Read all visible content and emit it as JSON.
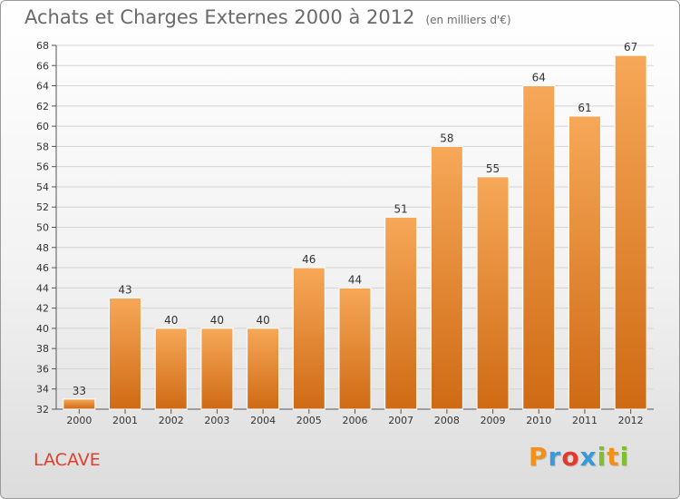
{
  "header": {
    "title": "Achats et Charges Externes 2000 à 2012",
    "subtitle": "(en milliers d'€)"
  },
  "footer": {
    "commune": "LACAVE",
    "brand_letters": [
      "P",
      "r",
      "o",
      "x",
      "i",
      "t",
      "i"
    ],
    "brand_colors": [
      "#f39019",
      "#3a9ad9",
      "#e23b2e",
      "#3a9ad9",
      "#7fbf2a",
      "#f39019",
      "#7fbf2a"
    ]
  },
  "colors": {
    "bar_top": "#f6a858",
    "bar_bottom": "#cf6a14",
    "grid": "#d3d3d3",
    "axis": "#555555",
    "text": "#333333"
  },
  "chart_data": {
    "type": "bar",
    "categories": [
      "2000",
      "2001",
      "2002",
      "2003",
      "2004",
      "2005",
      "2006",
      "2007",
      "2008",
      "2009",
      "2010",
      "2011",
      "2012"
    ],
    "values": [
      33,
      43,
      40,
      40,
      40,
      46,
      44,
      51,
      58,
      55,
      64,
      61,
      67
    ],
    "ylim": [
      32,
      68
    ],
    "yticks": [
      32,
      34,
      36,
      38,
      40,
      42,
      44,
      46,
      48,
      50,
      52,
      54,
      56,
      58,
      60,
      62,
      64,
      66,
      68
    ],
    "grid": true,
    "data_labels": true
  }
}
